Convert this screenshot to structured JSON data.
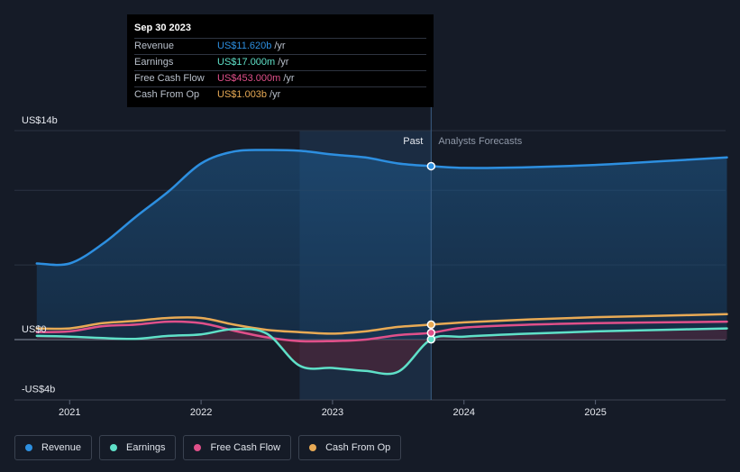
{
  "tooltip": {
    "date": "Sep 30 2023",
    "rows": [
      {
        "label": "Revenue",
        "value": "US$11.620b",
        "unit": "/yr",
        "color": "#2d8fe0"
      },
      {
        "label": "Earnings",
        "value": "US$17.000m",
        "unit": "/yr",
        "color": "#5fe0c8"
      },
      {
        "label": "Free Cash Flow",
        "value": "US$453.000m",
        "unit": "/yr",
        "color": "#e0508a"
      },
      {
        "label": "Cash From Op",
        "value": "US$1.003b",
        "unit": "/yr",
        "color": "#e8aa55"
      }
    ]
  },
  "labels": {
    "past": "Past",
    "forecast": "Analysts Forecasts"
  },
  "legend": [
    {
      "label": "Revenue",
      "color": "#2d8fe0"
    },
    {
      "label": "Earnings",
      "color": "#5fe0c8"
    },
    {
      "label": "Free Cash Flow",
      "color": "#e0508a"
    },
    {
      "label": "Cash From Op",
      "color": "#e8aa55"
    }
  ],
  "chart_data": {
    "type": "line",
    "x_unit": "year",
    "xlim": [
      2020.58,
      2025.99
    ],
    "ylim": [
      -4,
      14
    ],
    "y_ticks": [
      {
        "v": 14,
        "label": "US$14b"
      },
      {
        "v": 0,
        "label": "US$0"
      },
      {
        "v": -4,
        "label": "-US$4b"
      }
    ],
    "x_ticks": [
      {
        "v": 2021,
        "label": "2021"
      },
      {
        "v": 2022,
        "label": "2022"
      },
      {
        "v": 2023,
        "label": "2023"
      },
      {
        "v": 2024,
        "label": "2024"
      },
      {
        "v": 2025,
        "label": "2025"
      }
    ],
    "gridlines": [
      14,
      10,
      5,
      0
    ],
    "highlight_range": [
      2022.75,
      2023.75
    ],
    "past_end": 2023.75,
    "series": [
      {
        "name": "Revenue",
        "color": "#2d8fe0",
        "fill": true,
        "points": [
          [
            2020.75,
            5.1
          ],
          [
            2021.0,
            5.1
          ],
          [
            2021.25,
            6.4
          ],
          [
            2021.5,
            8.2
          ],
          [
            2021.75,
            9.9
          ],
          [
            2022.0,
            11.8
          ],
          [
            2022.25,
            12.6
          ],
          [
            2022.5,
            12.7
          ],
          [
            2022.75,
            12.65
          ],
          [
            2023.0,
            12.4
          ],
          [
            2023.25,
            12.2
          ],
          [
            2023.5,
            11.8
          ],
          [
            2023.75,
            11.62
          ],
          [
            2024.0,
            11.5
          ],
          [
            2024.5,
            11.55
          ],
          [
            2025.0,
            11.7
          ],
          [
            2025.5,
            11.95
          ],
          [
            2026.0,
            12.2
          ]
        ]
      },
      {
        "name": "Earnings",
        "color": "#5fe0c8",
        "fill": false,
        "points": [
          [
            2020.75,
            0.25
          ],
          [
            2021.0,
            0.2
          ],
          [
            2021.25,
            0.1
          ],
          [
            2021.5,
            0.05
          ],
          [
            2021.75,
            0.25
          ],
          [
            2022.0,
            0.35
          ],
          [
            2022.25,
            0.7
          ],
          [
            2022.5,
            0.4
          ],
          [
            2022.75,
            -1.75
          ],
          [
            2023.0,
            -1.9
          ],
          [
            2023.25,
            -2.1
          ],
          [
            2023.5,
            -2.15
          ],
          [
            2023.75,
            0.017
          ],
          [
            2024.0,
            0.2
          ],
          [
            2024.5,
            0.4
          ],
          [
            2025.0,
            0.55
          ],
          [
            2025.5,
            0.65
          ],
          [
            2026.0,
            0.75
          ]
        ]
      },
      {
        "name": "Free Cash Flow",
        "color": "#e0508a",
        "fill": false,
        "points": [
          [
            2020.75,
            0.5
          ],
          [
            2021.0,
            0.55
          ],
          [
            2021.25,
            0.9
          ],
          [
            2021.5,
            1.0
          ],
          [
            2021.75,
            1.2
          ],
          [
            2022.0,
            1.1
          ],
          [
            2022.25,
            0.6
          ],
          [
            2022.5,
            0.15
          ],
          [
            2022.75,
            -0.1
          ],
          [
            2023.0,
            -0.1
          ],
          [
            2023.25,
            0.0
          ],
          [
            2023.5,
            0.3
          ],
          [
            2023.75,
            0.453
          ],
          [
            2024.0,
            0.8
          ],
          [
            2024.5,
            1.0
          ],
          [
            2025.0,
            1.1
          ],
          [
            2025.5,
            1.15
          ],
          [
            2026.0,
            1.2
          ]
        ]
      },
      {
        "name": "Cash From Op",
        "color": "#e8aa55",
        "fill": false,
        "points": [
          [
            2020.75,
            0.75
          ],
          [
            2021.0,
            0.75
          ],
          [
            2021.25,
            1.1
          ],
          [
            2021.5,
            1.25
          ],
          [
            2021.75,
            1.45
          ],
          [
            2022.0,
            1.45
          ],
          [
            2022.25,
            1.0
          ],
          [
            2022.5,
            0.65
          ],
          [
            2022.75,
            0.5
          ],
          [
            2023.0,
            0.4
          ],
          [
            2023.25,
            0.55
          ],
          [
            2023.5,
            0.85
          ],
          [
            2023.75,
            1.003
          ],
          [
            2024.0,
            1.15
          ],
          [
            2024.5,
            1.35
          ],
          [
            2025.0,
            1.5
          ],
          [
            2025.5,
            1.6
          ],
          [
            2026.0,
            1.7
          ]
        ]
      }
    ]
  }
}
